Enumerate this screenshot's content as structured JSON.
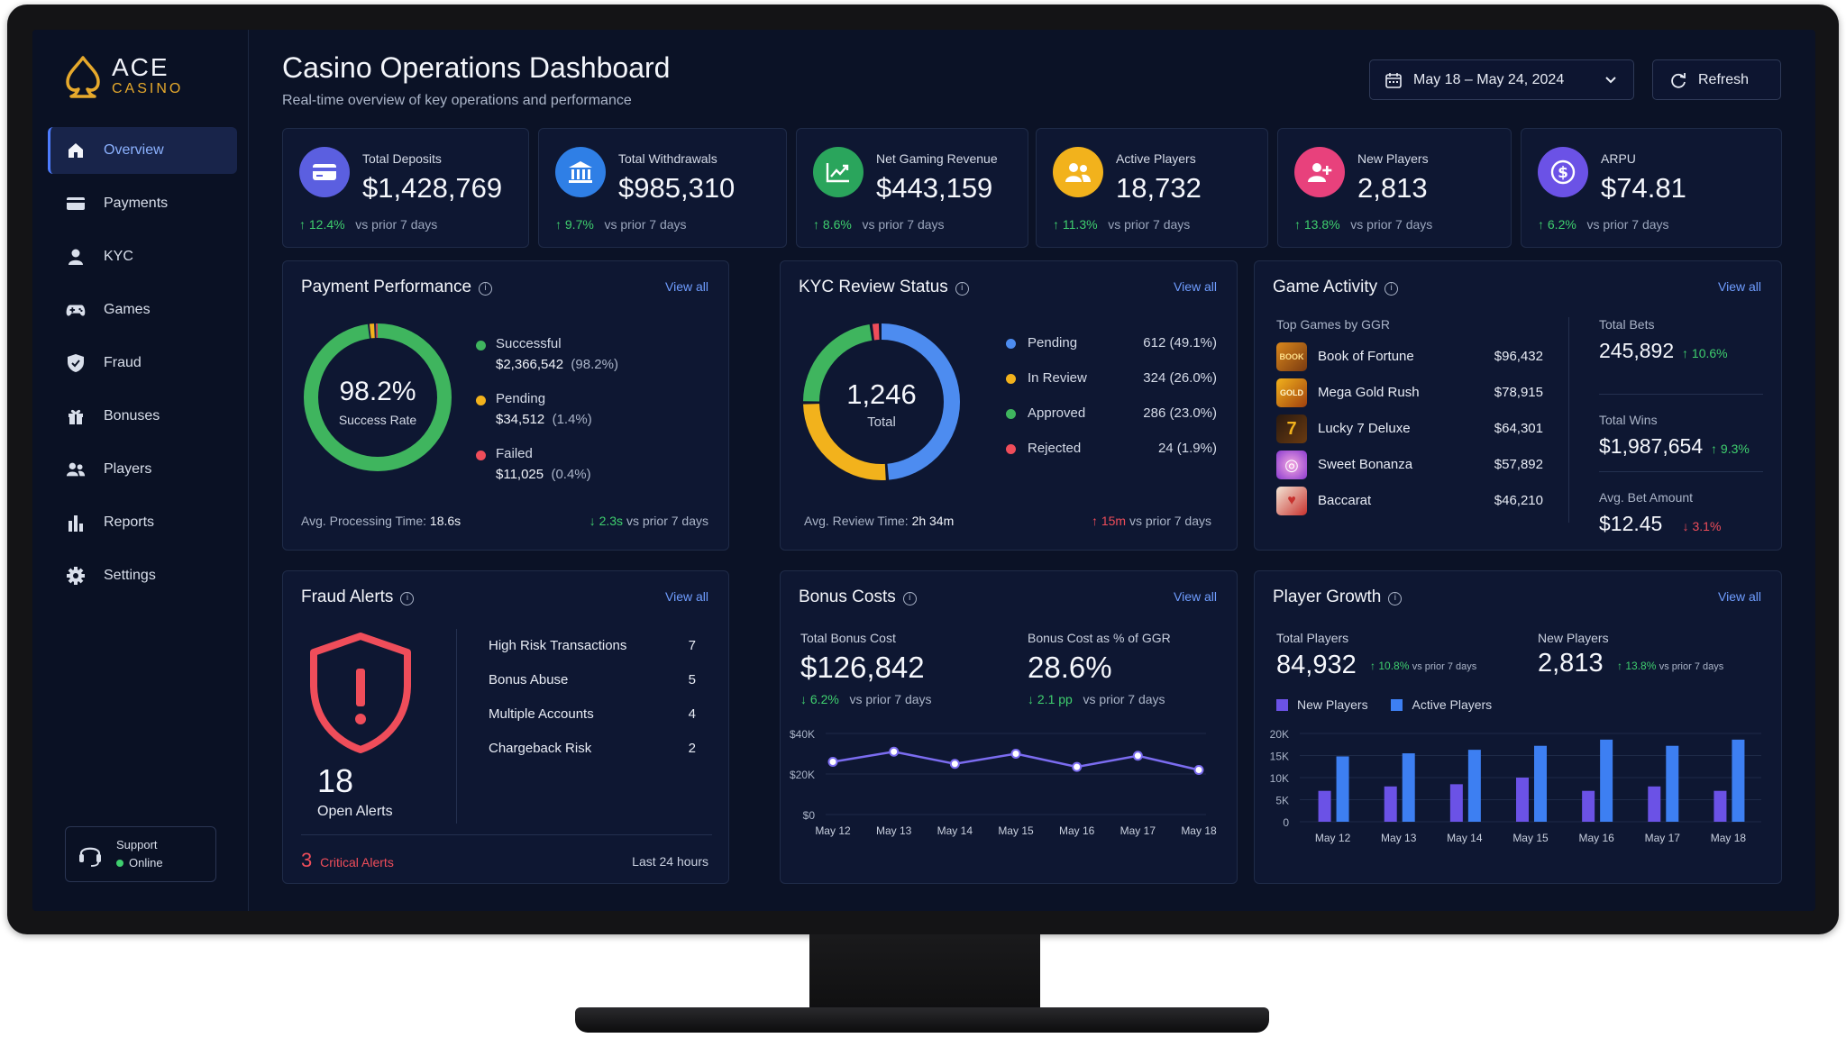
{
  "brand": {
    "name": "ACE",
    "sub": "CASINO"
  },
  "nav": [
    {
      "label": "Overview",
      "icon": "home-icon",
      "active": true
    },
    {
      "label": "Payments",
      "icon": "card-icon"
    },
    {
      "label": "KYC",
      "icon": "user-icon"
    },
    {
      "label": "Games",
      "icon": "gamepad-icon"
    },
    {
      "label": "Fraud",
      "icon": "shield-icon"
    },
    {
      "label": "Bonuses",
      "icon": "gift-icon"
    },
    {
      "label": "Players",
      "icon": "users-icon"
    },
    {
      "label": "Reports",
      "icon": "bar-chart-icon"
    },
    {
      "label": "Settings",
      "icon": "gear-icon"
    }
  ],
  "support": {
    "label": "Support",
    "status": "Online"
  },
  "header": {
    "title": "Casino Operations Dashboard",
    "subtitle": "Real-time overview of key operations and performance",
    "date_range": "May 18 – May 24, 2024",
    "refresh": "Refresh"
  },
  "kpis": [
    {
      "label": "Total Deposits",
      "value": "$1,428,769",
      "delta": "12.4%",
      "compare": "vs prior 7 days",
      "icon": "credit-card-icon",
      "color": "#5b5fe0"
    },
    {
      "label": "Total Withdrawals",
      "value": "$985,310",
      "delta": "9.7%",
      "compare": "vs prior 7 days",
      "icon": "bank-icon",
      "color": "#2f7fe6"
    },
    {
      "label": "Net Gaming Revenue",
      "value": "$443,159",
      "delta": "8.6%",
      "compare": "vs prior 7 days",
      "icon": "trend-up-icon",
      "color": "#2aa55c"
    },
    {
      "label": "Active Players",
      "value": "18,732",
      "delta": "11.3%",
      "compare": "vs prior 7 days",
      "icon": "users-icon",
      "color": "#f2b21c"
    },
    {
      "label": "New Players",
      "value": "2,813",
      "delta": "13.8%",
      "compare": "vs prior 7 days",
      "icon": "user-plus-icon",
      "color": "#e8417c"
    },
    {
      "label": "ARPU",
      "value": "$74.81",
      "delta": "6.2%",
      "compare": "vs prior 7 days",
      "icon": "dollar-icon",
      "color": "#6b52e6"
    }
  ],
  "payment": {
    "title": "Payment Performance",
    "view_all": "View all",
    "rate": "98.2%",
    "rate_label": "Success Rate",
    "items": [
      {
        "label": "Successful",
        "value": "$2,366,542",
        "pct": "(98.2%)",
        "color": "#3fb55e"
      },
      {
        "label": "Pending",
        "value": "$34,512",
        "pct": "(1.4%)",
        "color": "#f2b21c"
      },
      {
        "label": "Failed",
        "value": "$11,025",
        "pct": "(0.4%)",
        "color": "#ef4d5a"
      }
    ],
    "donut": [
      98.2,
      1.4,
      0.4
    ],
    "avg_label": "Avg. Processing Time:",
    "avg_value": "18.6s",
    "delta": "2.3s",
    "compare": "vs prior 7 days"
  },
  "kyc": {
    "title": "KYC Review Status",
    "view_all": "View all",
    "total": "1,246",
    "total_label": "Total",
    "items": [
      {
        "label": "Pending",
        "value": "612 (49.1%)",
        "color": "#4d8cf0",
        "pct": 49.1
      },
      {
        "label": "In Review",
        "value": "324 (26.0%)",
        "color": "#f2b21c",
        "pct": 26.0
      },
      {
        "label": "Approved",
        "value": "286 (23.0%)",
        "color": "#3fb55e",
        "pct": 23.0
      },
      {
        "label": "Rejected",
        "value": "24 (1.9%)",
        "color": "#ef4d5a",
        "pct": 1.9
      }
    ],
    "avg_label": "Avg. Review Time:",
    "avg_value": "2h 34m",
    "delta": "15m",
    "compare": "vs prior 7 days"
  },
  "games": {
    "title": "Game Activity",
    "view_all": "View all",
    "top_label": "Top Games by GGR",
    "list": [
      {
        "name": "Book of Fortune",
        "value": "$96,432",
        "icon": "book-of-fortune-icon"
      },
      {
        "name": "Mega Gold Rush",
        "value": "$78,915",
        "icon": "mega-gold-rush-icon"
      },
      {
        "name": "Lucky 7 Deluxe",
        "value": "$64,301",
        "icon": "lucky-7-icon"
      },
      {
        "name": "Sweet Bonanza",
        "value": "$57,892",
        "icon": "sweet-bonanza-icon"
      },
      {
        "name": "Baccarat",
        "value": "$46,210",
        "icon": "baccarat-icon"
      }
    ],
    "stats": [
      {
        "label": "Total Bets",
        "value": "245,892",
        "delta": "10.6%",
        "dir": "up"
      },
      {
        "label": "Total Wins",
        "value": "$1,987,654",
        "delta": "9.3%",
        "dir": "up"
      },
      {
        "label": "Avg. Bet Amount",
        "value": "$12.45",
        "delta": "3.1%",
        "dir": "down"
      }
    ]
  },
  "fraud": {
    "title": "Fraud Alerts",
    "view_all": "View all",
    "count": "18",
    "count_label": "Open Alerts",
    "rows": [
      {
        "label": "High Risk Transactions",
        "value": "7"
      },
      {
        "label": "Bonus Abuse",
        "value": "5"
      },
      {
        "label": "Multiple Accounts",
        "value": "4"
      },
      {
        "label": "Chargeback Risk",
        "value": "2"
      }
    ],
    "critical_count": "3",
    "critical_label": "Critical Alerts",
    "period": "Last 24 hours"
  },
  "bonus": {
    "title": "Bonus Costs",
    "view_all": "View all",
    "cost_label": "Total Bonus Cost",
    "cost_value": "$126,842",
    "cost_delta": "6.2%",
    "pct_label": "Bonus Cost as % of GGR",
    "pct_value": "28.6%",
    "pct_delta": "2.1 pp",
    "compare": "vs prior 7 days"
  },
  "growth": {
    "title": "Player Growth",
    "view_all": "View all",
    "total_label": "Total Players",
    "total_value": "84,932",
    "total_delta": "10.8%",
    "new_label": "New Players",
    "new_value": "2,813",
    "new_delta": "13.8%",
    "compare": "vs prior 7 days"
  },
  "chart_data": [
    {
      "type": "line",
      "categories": [
        "May 12",
        "May 13",
        "May 14",
        "May 15",
        "May 16",
        "May 17",
        "May 18"
      ],
      "series": [
        {
          "values": [
            26000,
            31000,
            25000,
            30000,
            23500,
            29000,
            22000
          ],
          "color": "#7b6cf0"
        }
      ],
      "yticks": [
        "$0",
        "$20K",
        "$40K"
      ],
      "ylim": [
        0,
        40000
      ]
    },
    {
      "type": "bar",
      "categories": [
        "May 12",
        "May 13",
        "May 14",
        "May 15",
        "May 16",
        "May 17",
        "May 18"
      ],
      "series": [
        {
          "name": "New Players",
          "values": [
            7000,
            8000,
            8500,
            10000,
            7000,
            8000,
            7000
          ],
          "color": "#6b52e6"
        },
        {
          "name": "Active Players",
          "values": [
            14800,
            15500,
            16300,
            17200,
            18600,
            17200,
            18600
          ],
          "color": "#3d7ff2"
        }
      ],
      "yticks": [
        "0",
        "5K",
        "10K",
        "15K",
        "20K"
      ],
      "ylim": [
        0,
        20000
      ]
    }
  ]
}
